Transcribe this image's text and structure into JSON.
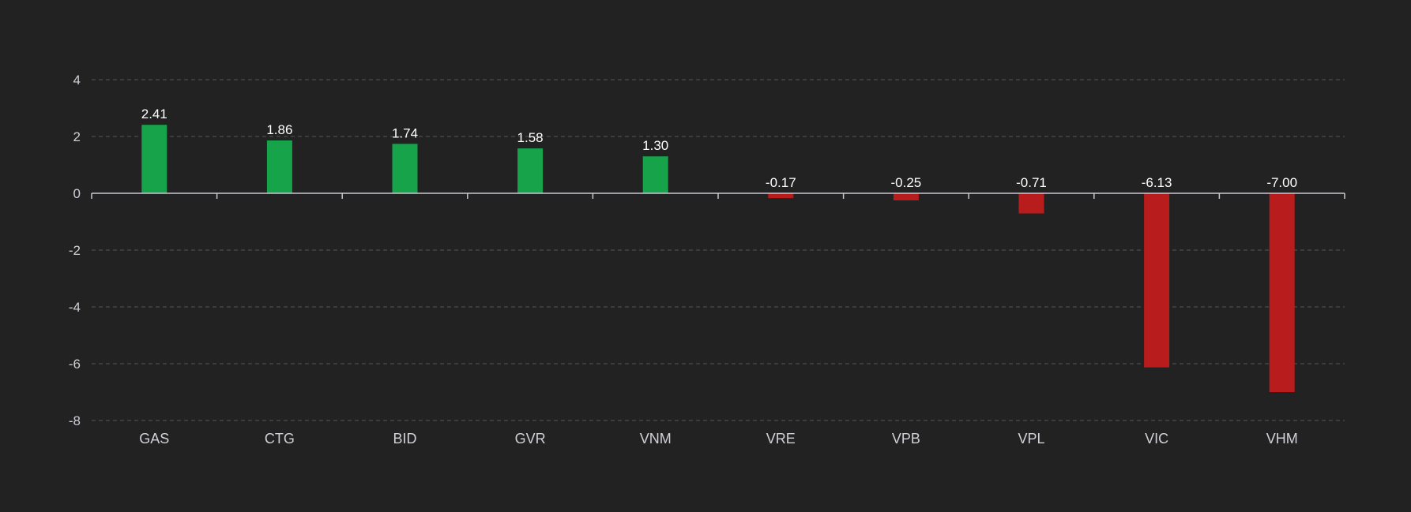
{
  "chart_data": {
    "type": "bar",
    "categories": [
      "GAS",
      "CTG",
      "BID",
      "GVR",
      "VNM",
      "VRE",
      "VPB",
      "VPL",
      "VIC",
      "VHM"
    ],
    "values": [
      2.41,
      1.86,
      1.74,
      1.58,
      1.3,
      -0.17,
      -0.25,
      -0.71,
      -6.13,
      -7.0
    ],
    "data_labels": [
      "2.41",
      "1.86",
      "1.74",
      "1.58",
      "1.30",
      "-0.17",
      "-0.25",
      "-0.71",
      "-6.13",
      "-7.00"
    ],
    "y_ticks": [
      4,
      2,
      0,
      -2,
      -4,
      -6,
      -8
    ],
    "y_tick_labels": [
      "4",
      "2",
      "0",
      "-2",
      "-4",
      "-6",
      "-8"
    ],
    "ylim": [
      -8,
      4
    ],
    "grid": true,
    "legend": "none",
    "colors": {
      "positive": "#16a34a",
      "negative": "#b91c1c",
      "background": "#222222",
      "grid": "#555555",
      "axis": "#c8c8d0",
      "tick_text": "#d0d0d8",
      "label_text": "#ffffff"
    }
  }
}
